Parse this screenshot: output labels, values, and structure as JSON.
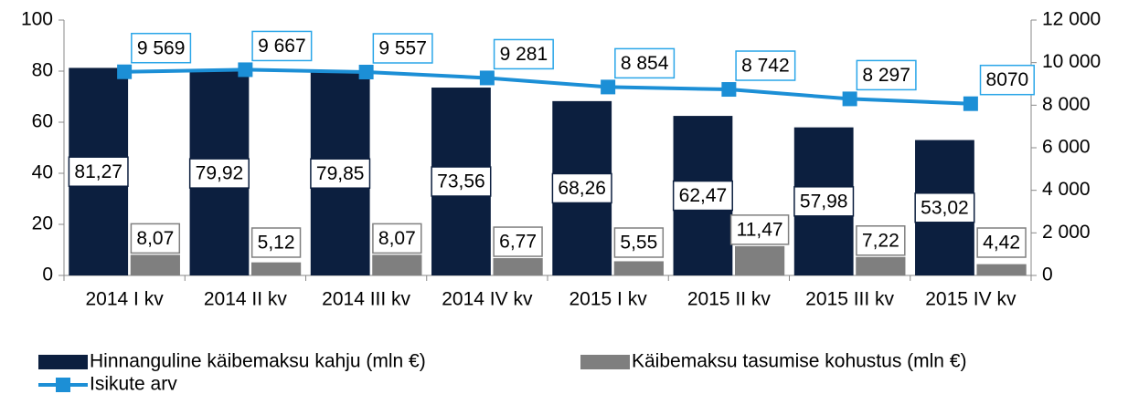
{
  "chart_data": {
    "type": "bar_line",
    "categories": [
      "2014 I kv",
      "2014 II kv",
      "2014 III kv",
      "2014 IV kv",
      "2015 I kv",
      "2015 II kv",
      "2015 III kv",
      "2015 IV kv"
    ],
    "series": [
      {
        "name": "Hinnanguline käibemaksu kahju (mln €)",
        "type": "bar",
        "color": "#0c1f3f",
        "values": [
          81.27,
          79.92,
          79.85,
          73.56,
          68.26,
          62.47,
          57.98,
          53.02
        ],
        "value_labels": [
          "81,27",
          "79,92",
          "79,85",
          "73,56",
          "68,26",
          "62,47",
          "57,98",
          "53,02"
        ]
      },
      {
        "name": "Käibemaksu tasumise kohustus (mln €)",
        "type": "bar",
        "color": "#7f7f7f",
        "values": [
          8.07,
          5.12,
          8.07,
          6.77,
          5.55,
          11.47,
          7.22,
          4.42
        ],
        "value_labels": [
          "8,07",
          "5,12",
          "8,07",
          "6,77",
          "5,55",
          "11,47",
          "7,22",
          "4,42"
        ]
      },
      {
        "name": "Isikute arv",
        "type": "line",
        "axis": "y2",
        "color": "#1c8fd6",
        "values": [
          9569,
          9667,
          9557,
          9281,
          8854,
          8742,
          8297,
          8070
        ],
        "value_labels": [
          "9 569",
          "9 667",
          "9 557",
          "9 281",
          "8 854",
          "8 742",
          "8 297",
          "8070"
        ]
      }
    ],
    "ylim": [
      0,
      100
    ],
    "yticks": [
      0,
      20,
      40,
      60,
      80,
      100
    ],
    "y2lim": [
      0,
      12000
    ],
    "y2ticks": [
      0,
      {
        "value": 2000,
        "label": "2 000"
      },
      {
        "value": 4000,
        "label": "4 000"
      },
      {
        "value": 6000,
        "label": "6 000"
      },
      {
        "value": 8000,
        "label": "8 000"
      },
      {
        "value": 10000,
        "label": "10 000"
      },
      {
        "value": 12000,
        "label": "12 000"
      }
    ],
    "legend": "bottom"
  }
}
